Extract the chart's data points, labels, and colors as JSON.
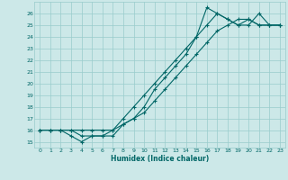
{
  "xlabel": "Humidex (Indice chaleur)",
  "bg_color": "#cce8e8",
  "grid_color": "#99cccc",
  "line_color": "#006666",
  "xlim": [
    -0.5,
    23.5
  ],
  "ylim": [
    14.5,
    27.0
  ],
  "xticks": [
    0,
    1,
    2,
    3,
    4,
    5,
    6,
    7,
    8,
    9,
    10,
    11,
    12,
    13,
    14,
    15,
    16,
    17,
    18,
    19,
    20,
    21,
    22,
    23
  ],
  "yticks": [
    15,
    16,
    17,
    18,
    19,
    20,
    21,
    22,
    23,
    24,
    25,
    26
  ],
  "line1_x": [
    0,
    1,
    2,
    3,
    4,
    5,
    6,
    7,
    8,
    9,
    10,
    11,
    12,
    13,
    14,
    15,
    16,
    17,
    18,
    19,
    20,
    21,
    22,
    23
  ],
  "line1_y": [
    16,
    16,
    16,
    16,
    15.5,
    15.5,
    15.5,
    16,
    17,
    18,
    19,
    20,
    21,
    22,
    23,
    24,
    26.5,
    26,
    25.5,
    25,
    25,
    26,
    25,
    25
  ],
  "line2_x": [
    0,
    1,
    2,
    3,
    4,
    5,
    6,
    7,
    8,
    9,
    10,
    11,
    12,
    13,
    14,
    15,
    16,
    17,
    18,
    19,
    20,
    21,
    22,
    23
  ],
  "line2_y": [
    16,
    16,
    16,
    15.5,
    15.0,
    15.5,
    15.5,
    15.5,
    16.5,
    17,
    18,
    19.5,
    20.5,
    21.5,
    22.5,
    24,
    25,
    26,
    25.5,
    25,
    25.5,
    25,
    25,
    25
  ],
  "line3_x": [
    0,
    1,
    2,
    3,
    4,
    5,
    6,
    7,
    8,
    9,
    10,
    11,
    12,
    13,
    14,
    15,
    16,
    17,
    18,
    19,
    20,
    21,
    22,
    23
  ],
  "line3_y": [
    16,
    16,
    16,
    16,
    16,
    16,
    16,
    16,
    16.5,
    17,
    17.5,
    18.5,
    19.5,
    20.5,
    21.5,
    22.5,
    23.5,
    24.5,
    25,
    25.5,
    25.5,
    25,
    25,
    25
  ]
}
